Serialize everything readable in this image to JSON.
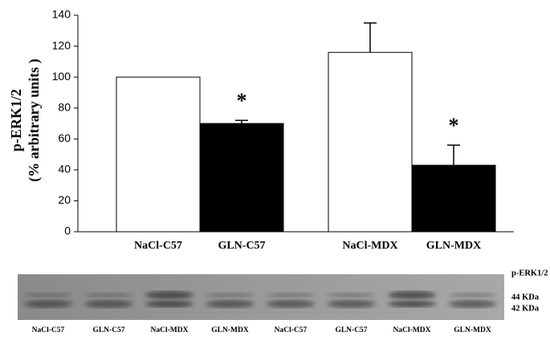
{
  "chart_data": {
    "type": "bar",
    "ylabel": [
      "p-ERK1/2",
      "(% arbitrary units )"
    ],
    "categories": [
      "NaCl-C57",
      "GLN-C57",
      "NaCl-MDX",
      "GLN-MDX"
    ],
    "values": [
      100,
      70,
      116,
      43
    ],
    "errors": [
      null,
      2,
      19,
      13
    ],
    "colors": [
      "#ffffff",
      "#000000",
      "#ffffff",
      "#000000"
    ],
    "annotations": [
      {
        "text": "*",
        "category": "GLN-C57"
      },
      {
        "text": "*",
        "category": "GLN-MDX"
      }
    ],
    "ylim": [
      0,
      140
    ],
    "yticks": [
      0,
      20,
      40,
      60,
      80,
      100,
      120,
      140
    ]
  },
  "blot": {
    "lanes": [
      "NaCl-C57",
      "GLN-C57",
      "NaCl-MDX",
      "GLN-MDX",
      "NaCl-C57",
      "GLN-C57",
      "NaCl-MDX",
      "GLN-MDX"
    ],
    "labels": [
      "p-ERK1/2",
      "44 KDa",
      "42 KDa"
    ]
  }
}
